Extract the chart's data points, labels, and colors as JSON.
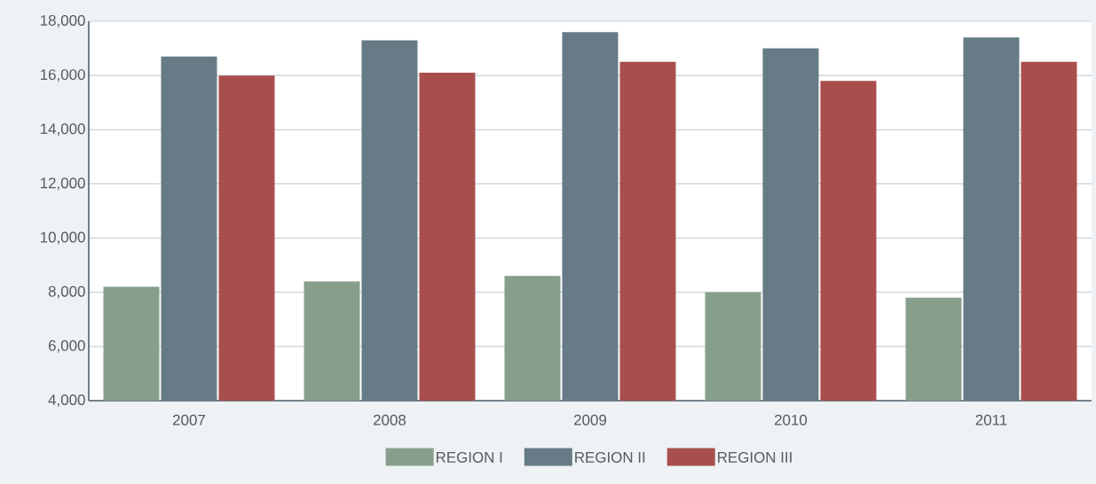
{
  "chart_data": {
    "type": "bar",
    "categories": [
      "2007",
      "2008",
      "2009",
      "2010",
      "2011"
    ],
    "series": [
      {
        "name": "REGION I",
        "color": "#879e8d",
        "values": [
          8200,
          8400,
          8600,
          8000,
          7800
        ]
      },
      {
        "name": "REGION II",
        "color": "#667b86",
        "values": [
          16700,
          17300,
          17600,
          17000,
          17400
        ]
      },
      {
        "name": "REGION III",
        "color": "#a84f4e",
        "values": [
          16000,
          16100,
          16500,
          15800,
          16500
        ]
      }
    ],
    "ylim": [
      4000,
      18000
    ],
    "yticks": [
      {
        "value": 4000,
        "label": "4,000"
      },
      {
        "value": 6000,
        "label": "6,000"
      },
      {
        "value": 8000,
        "label": "8,000"
      },
      {
        "value": 10000,
        "label": "10,000"
      },
      {
        "value": 12000,
        "label": "12,000"
      },
      {
        "value": 14000,
        "label": "14,000"
      },
      {
        "value": 16000,
        "label": "16,000"
      },
      {
        "value": 18000,
        "label": "18,000"
      }
    ],
    "grid": "y",
    "legend": "bottom"
  }
}
